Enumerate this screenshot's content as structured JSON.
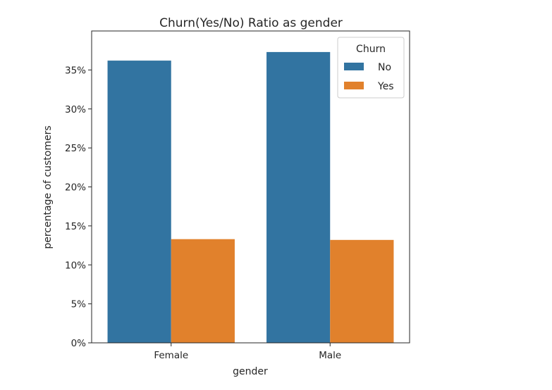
{
  "chart_data": {
    "type": "bar",
    "title": "Churn(Yes/No) Ratio as gender",
    "xlabel": "gender",
    "ylabel": "percentage of customers",
    "categories": [
      "Female",
      "Male"
    ],
    "series": [
      {
        "name": "No",
        "values": [
          0.362,
          0.373
        ],
        "color": "#3274a1"
      },
      {
        "name": "Yes",
        "values": [
          0.133,
          0.132
        ],
        "color": "#e1812c"
      }
    ],
    "ylim": [
      0,
      0.4
    ],
    "yticks": [
      0,
      0.05,
      0.1,
      0.15,
      0.2,
      0.25,
      0.3,
      0.35
    ],
    "ytick_labels": [
      "0%",
      "5%",
      "10%",
      "15%",
      "20%",
      "25%",
      "30%",
      "35%"
    ],
    "grid": false,
    "legend": {
      "title": "Churn",
      "placement": "top-right",
      "entries": [
        "No",
        "Yes"
      ]
    }
  }
}
